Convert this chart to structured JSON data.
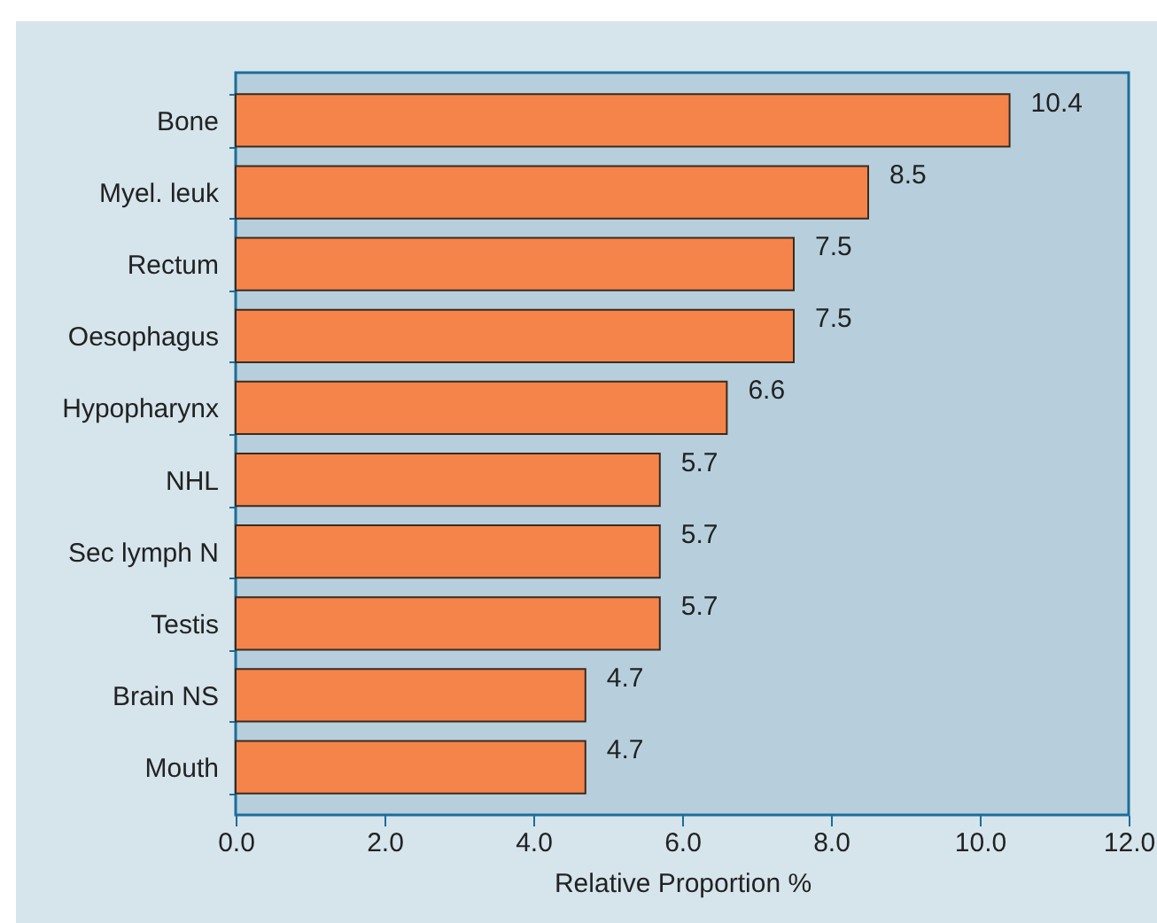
{
  "chart_data": {
    "type": "bar",
    "orientation": "horizontal",
    "xlabel": "Relative Proportion %",
    "categories": [
      "Bone",
      "Myel. leuk",
      "Rectum",
      "Oesophagus",
      "Hypopharynx",
      "NHL",
      "Sec lymph N",
      "Testis",
      "Brain NS",
      "Mouth"
    ],
    "values": [
      10.4,
      8.5,
      7.5,
      7.5,
      6.6,
      5.7,
      5.7,
      5.7,
      4.7,
      4.7
    ],
    "color": "#f5844a",
    "xlim": [
      0,
      12
    ],
    "xticks": [
      {
        "value": 0,
        "label": "0.0"
      },
      {
        "value": 2,
        "label": "2.0"
      },
      {
        "value": 4,
        "label": "4.0"
      },
      {
        "value": 6,
        "label": "6.0"
      },
      {
        "value": 8,
        "label": "8.0"
      },
      {
        "value": 10,
        "label": "10.0"
      },
      {
        "value": 12,
        "label": "12.0"
      }
    ],
    "data_labels": true,
    "grid": false
  }
}
